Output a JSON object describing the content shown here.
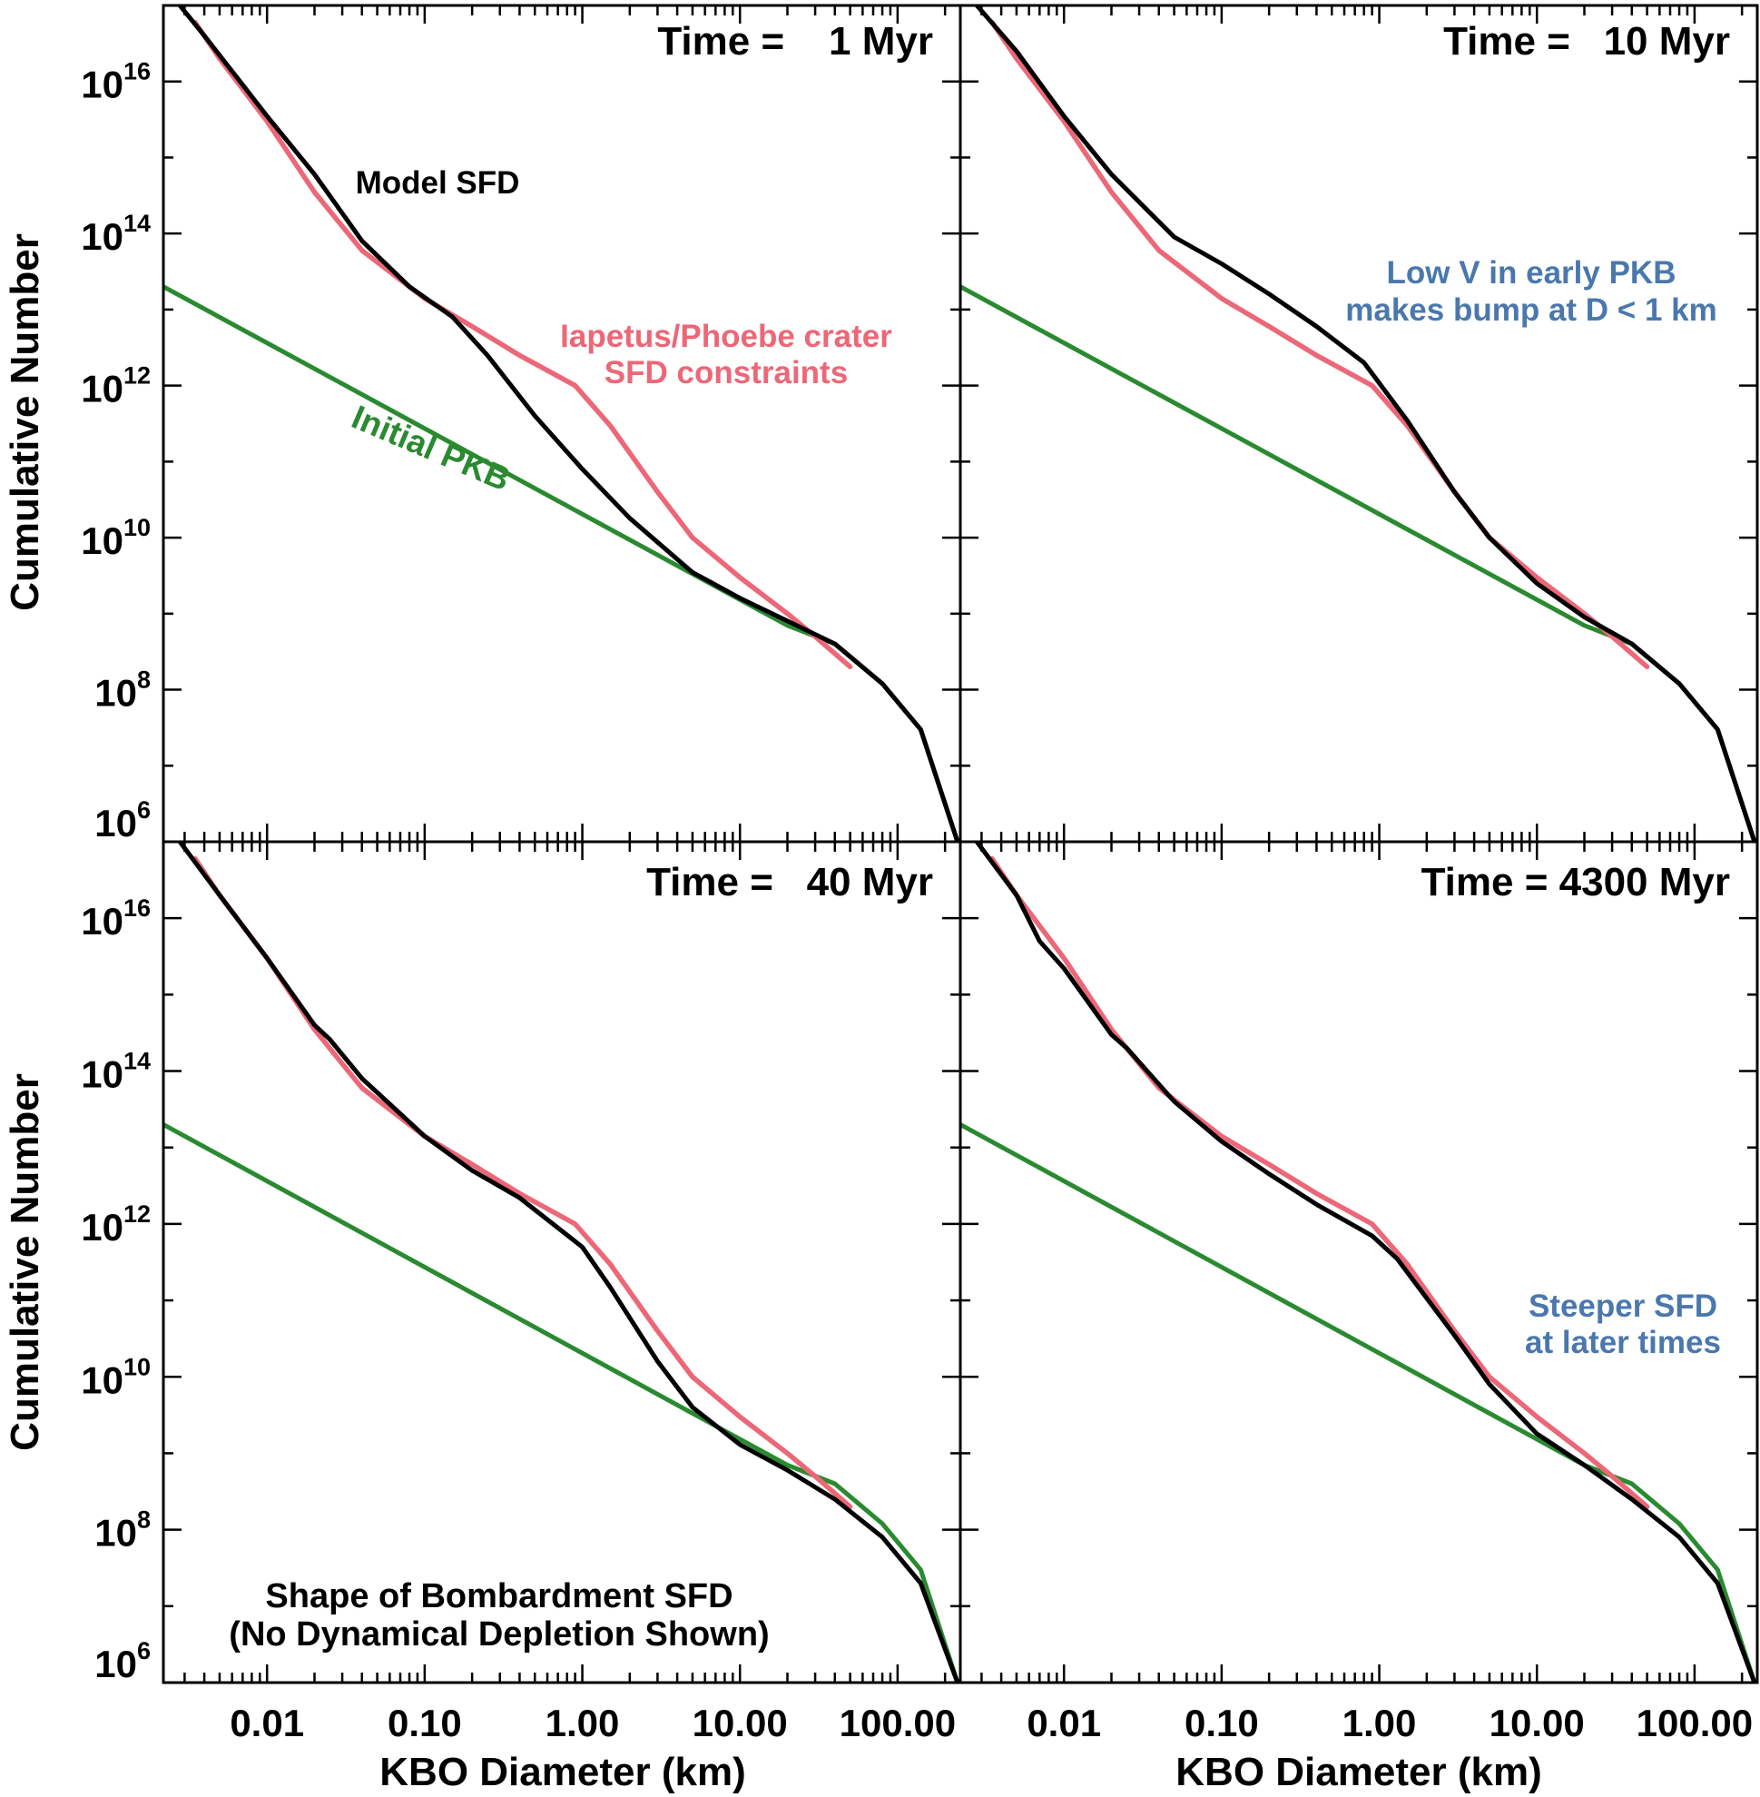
{
  "figure": {
    "ylabel": "Cumulative Number",
    "xlabel": "KBO Diameter (km)",
    "x_tick_labels": [
      "0.01",
      "0.10",
      "1.00",
      "10.00",
      "100.00"
    ],
    "y_tick_labels": [
      {
        "base": "10",
        "exp": "6"
      },
      {
        "base": "10",
        "exp": "8"
      },
      {
        "base": "10",
        "exp": "10"
      },
      {
        "base": "10",
        "exp": "12"
      },
      {
        "base": "10",
        "exp": "14"
      },
      {
        "base": "10",
        "exp": "16"
      }
    ],
    "colors": {
      "model": "#000000",
      "constraints": "#ec6777",
      "initial": "#2a8a30",
      "note": "#4a78ad"
    }
  },
  "chart_data": [
    {
      "type": "line",
      "title": "Time =    1 Myr",
      "xlabel": "KBO Diameter (km)",
      "ylabel": "Cumulative Number",
      "xscale": "log",
      "yscale": "log",
      "xlim": [
        0.0022,
        250
      ],
      "ylim": [
        1000000.0,
        1e+17
      ],
      "annotations": [
        {
          "text": "Model SFD",
          "color": "#000000"
        },
        {
          "text": "Iapetus/Phoebe crater",
          "color": "#ec6777"
        },
        {
          "text": "SFD constraints",
          "color": "#ec6777"
        },
        {
          "text": "Initial PKB",
          "color": "#2a8a30"
        }
      ],
      "series": [
        {
          "name": "Initial PKB",
          "color": "#2a8a30",
          "x": [
            0.0022,
            20,
            40,
            80,
            140,
            240
          ],
          "y": [
            20000000000000.0,
            700000000.0,
            400000000.0,
            120000000.0,
            30000000.0,
            1000000.0
          ]
        },
        {
          "name": "Iapetus/Phoebe crater SFD constraints",
          "color": "#ec6777",
          "x": [
            0.0035,
            0.005,
            0.01,
            0.02,
            0.04,
            0.1,
            0.2,
            0.4,
            0.9,
            1.5,
            3,
            5,
            10,
            20,
            30,
            50
          ],
          "y": [
            6e+16,
            2e+16,
            3000000000000000.0,
            350000000000000.0,
            60000000000000.0,
            14000000000000.0,
            6000000000000.0,
            2500000000000.0,
            1000000000000.0,
            300000000000.0,
            40000000000.0,
            10000000000.0,
            3000000000.0,
            1000000000.0,
            500000000.0,
            200000000.0
          ]
        },
        {
          "name": "Model SFD",
          "color": "#000000",
          "x": [
            0.0028,
            0.004,
            0.01,
            0.02,
            0.04,
            0.08,
            0.15,
            0.25,
            0.5,
            1.0,
            2.0,
            5.0,
            10,
            20,
            40,
            80,
            140,
            240
          ],
          "y": [
            1e+17,
            4e+16,
            3500000000000000.0,
            600000000000000.0,
            80000000000000.0,
            20000000000000.0,
            8000000000000.0,
            2500000000000.0,
            400000000000.0,
            80000000000.0,
            18000000000.0,
            3500000000.0,
            1600000000.0,
            800000000.0,
            400000000.0,
            120000000.0,
            30000000.0,
            1000000.0
          ]
        }
      ]
    },
    {
      "type": "line",
      "title": "Time =   10 Myr",
      "xlabel": "KBO Diameter (km)",
      "ylabel": "Cumulative Number",
      "xscale": "log",
      "yscale": "log",
      "xlim": [
        0.0022,
        250
      ],
      "ylim": [
        1000000.0,
        1e+17
      ],
      "annotations": [
        {
          "text": "Low V in early PKB",
          "color": "#4a78ad"
        },
        {
          "text": "makes bump at D < 1 km",
          "color": "#4a78ad"
        }
      ],
      "series": [
        {
          "name": "Initial PKB",
          "color": "#2a8a30",
          "x": [
            0.0022,
            20,
            40,
            80,
            140,
            240
          ],
          "y": [
            20000000000000.0,
            700000000.0,
            400000000.0,
            120000000.0,
            30000000.0,
            1000000.0
          ]
        },
        {
          "name": "Iapetus/Phoebe crater SFD constraints",
          "color": "#ec6777",
          "x": [
            0.0035,
            0.005,
            0.01,
            0.02,
            0.04,
            0.1,
            0.2,
            0.4,
            0.9,
            1.5,
            3,
            5,
            10,
            20,
            30,
            50
          ],
          "y": [
            6e+16,
            2e+16,
            3000000000000000.0,
            350000000000000.0,
            60000000000000.0,
            14000000000000.0,
            6000000000000.0,
            2500000000000.0,
            1000000000000.0,
            300000000000.0,
            40000000000.0,
            10000000000.0,
            3000000000.0,
            1000000000.0,
            500000000.0,
            200000000.0
          ]
        },
        {
          "name": "Model SFD",
          "color": "#000000",
          "x": [
            0.0028,
            0.005,
            0.01,
            0.02,
            0.05,
            0.1,
            0.2,
            0.4,
            0.8,
            1.5,
            3,
            5,
            10,
            20,
            40,
            80,
            140,
            240
          ],
          "y": [
            1e+17,
            2.5e+16,
            3500000000000000.0,
            600000000000000.0,
            90000000000000.0,
            40000000000000.0,
            16000000000000.0,
            6000000000000.0,
            2000000000000.0,
            350000000000.0,
            40000000000.0,
            10000000000.0,
            2500000000.0,
            900000000.0,
            400000000.0,
            120000000.0,
            30000000.0,
            1000000.0
          ]
        }
      ]
    },
    {
      "type": "line",
      "title": "Time =   40 Myr",
      "xlabel": "KBO Diameter (km)",
      "ylabel": "Cumulative Number",
      "xscale": "log",
      "yscale": "log",
      "xlim": [
        0.0022,
        250
      ],
      "ylim": [
        1000000.0,
        1e+17
      ],
      "annotations": [
        {
          "text": "Shape of Bombardment SFD",
          "color": "#000000"
        },
        {
          "text": "(No Dynamical Depletion Shown)",
          "color": "#000000"
        }
      ],
      "series": [
        {
          "name": "Initial PKB",
          "color": "#2a8a30",
          "x": [
            0.0022,
            20,
            40,
            80,
            140,
            240
          ],
          "y": [
            20000000000000.0,
            700000000.0,
            400000000.0,
            120000000.0,
            30000000.0,
            1000000.0
          ]
        },
        {
          "name": "Iapetus/Phoebe crater SFD constraints",
          "color": "#ec6777",
          "x": [
            0.0035,
            0.005,
            0.01,
            0.02,
            0.04,
            0.1,
            0.2,
            0.4,
            0.9,
            1.5,
            3,
            5,
            10,
            20,
            30,
            50
          ],
          "y": [
            6e+16,
            2e+16,
            3000000000000000.0,
            350000000000000.0,
            60000000000000.0,
            14000000000000.0,
            6000000000000.0,
            2500000000000.0,
            1000000000000.0,
            300000000000.0,
            40000000000.0,
            10000000000.0,
            3000000000.0,
            1000000000.0,
            500000000.0,
            200000000.0
          ]
        },
        {
          "name": "Model SFD",
          "color": "#000000",
          "x": [
            0.0028,
            0.005,
            0.01,
            0.02,
            0.025,
            0.04,
            0.1,
            0.2,
            0.4,
            1.0,
            1.5,
            3,
            5,
            10,
            20,
            40,
            80,
            140,
            240
          ],
          "y": [
            1e+17,
            2e+16,
            3000000000000000.0,
            400000000000000.0,
            260000000000000.0,
            80000000000000.0,
            14000000000000.0,
            5000000000000.0,
            2200000000000.0,
            500000000000.0,
            150000000000.0,
            16000000000.0,
            4000000000.0,
            1300000000.0,
            600000000.0,
            250000000.0,
            80000000.0,
            20000000.0,
            1000000.0
          ]
        }
      ]
    },
    {
      "type": "line",
      "title": "Time = 4300 Myr",
      "xlabel": "KBO Diameter (km)",
      "ylabel": "Cumulative Number",
      "xscale": "log",
      "yscale": "log",
      "xlim": [
        0.0022,
        250
      ],
      "ylim": [
        1000000.0,
        1e+17
      ],
      "annotations": [
        {
          "text": "Steeper SFD",
          "color": "#4a78ad"
        },
        {
          "text": "at later times",
          "color": "#4a78ad"
        }
      ],
      "series": [
        {
          "name": "Initial PKB",
          "color": "#2a8a30",
          "x": [
            0.0022,
            20,
            40,
            80,
            140,
            240
          ],
          "y": [
            20000000000000.0,
            700000000.0,
            400000000.0,
            120000000.0,
            30000000.0,
            1000000.0
          ]
        },
        {
          "name": "Iapetus/Phoebe crater SFD constraints",
          "color": "#ec6777",
          "x": [
            0.0035,
            0.005,
            0.01,
            0.02,
            0.04,
            0.1,
            0.2,
            0.4,
            0.9,
            1.5,
            3,
            5,
            10,
            20,
            30,
            50
          ],
          "y": [
            6e+16,
            2e+16,
            3000000000000000.0,
            350000000000000.0,
            60000000000000.0,
            14000000000000.0,
            6000000000000.0,
            2500000000000.0,
            1000000000000.0,
            300000000000.0,
            40000000000.0,
            10000000000.0,
            3000000000.0,
            1000000000.0,
            500000000.0,
            200000000.0
          ]
        },
        {
          "name": "Model SFD",
          "color": "#000000",
          "x": [
            0.0028,
            0.005,
            0.007,
            0.01,
            0.02,
            0.025,
            0.05,
            0.1,
            0.2,
            0.4,
            0.9,
            1.3,
            3,
            5,
            10,
            20,
            40,
            80,
            140,
            240
          ],
          "y": [
            1e+17,
            2e+16,
            5000000000000000.0,
            2200000000000000.0,
            300000000000000.0,
            200000000000000.0,
            40000000000000.0,
            12000000000000.0,
            4500000000000.0,
            1800000000000.0,
            700000000000.0,
            350000000000.0,
            35000000000.0,
            8000000000.0,
            1800000000.0,
            700000000.0,
            250000000.0,
            80000000.0,
            20000000.0,
            1000000.0
          ]
        }
      ]
    }
  ]
}
